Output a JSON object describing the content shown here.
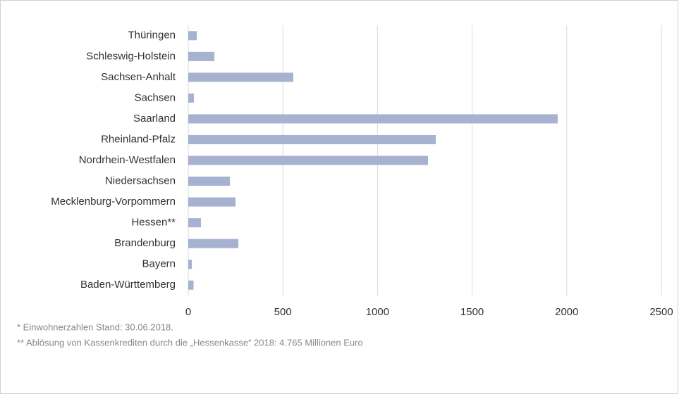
{
  "chart_data": {
    "type": "bar",
    "orientation": "horizontal",
    "categories": [
      "Thüringen",
      "Schleswig-Holstein",
      "Sachsen-Anhalt",
      "Sachsen",
      "Saarland",
      "Rheinland-Pfalz",
      "Nordrhein-Westfalen",
      "Niedersachsen",
      "Mecklenburg-Vorpommern",
      "Hessen**",
      "Brandenburg",
      "Bayern",
      "Baden-Württemberg"
    ],
    "values": [
      45,
      138,
      555,
      30,
      1952,
      1308,
      1267,
      220,
      250,
      67,
      265,
      19,
      28
    ],
    "color": "#a6b2d0",
    "xlim": [
      0,
      2500
    ],
    "xticks": [
      0,
      500,
      1000,
      1500,
      2000,
      2500
    ],
    "grid": true,
    "notes": [
      "*  Einwohnerzahlen Stand: 30.06.2018.",
      "** Ablösung von Kassenkrediten durch die „Hessenkasse“ 2018: 4.765 Millionen Euro"
    ]
  }
}
